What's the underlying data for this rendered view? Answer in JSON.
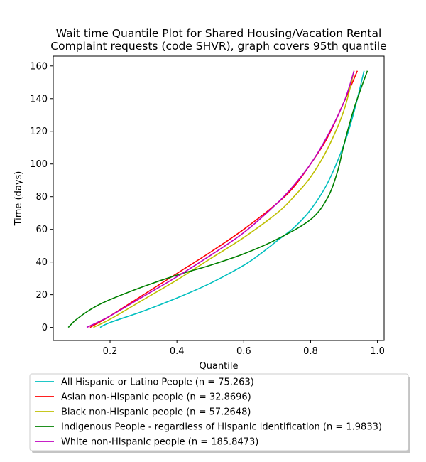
{
  "chart_data": {
    "type": "line",
    "title_lines": [
      "Wait time Quantile Plot for Shared Housing/Vacation Rental",
      "Complaint  requests (code SHVR), graph covers 95th quantile"
    ],
    "xlabel": "Quantile",
    "ylabel": "Time (days)",
    "xlim": [
      0.03,
      1.02
    ],
    "ylim": [
      -8,
      166
    ],
    "xticks": [
      0.2,
      0.4,
      0.6,
      0.8,
      1.0
    ],
    "xtick_labels": [
      "0.2",
      "0.4",
      "0.6",
      "0.8",
      "1.0"
    ],
    "yticks": [
      0,
      20,
      40,
      60,
      80,
      100,
      120,
      140,
      160
    ],
    "ytick_labels": [
      "0",
      "20",
      "40",
      "60",
      "80",
      "100",
      "120",
      "140",
      "160"
    ],
    "grid": false,
    "legend_placement": "below",
    "series": [
      {
        "name": "All Hispanic or Latino People (n = 75.263)",
        "color": "#00bfbf",
        "points": [
          [
            0.17,
            0
          ],
          [
            0.2,
            3
          ],
          [
            0.3,
            10
          ],
          [
            0.4,
            18
          ],
          [
            0.5,
            27
          ],
          [
            0.6,
            38
          ],
          [
            0.65,
            45
          ],
          [
            0.7,
            53
          ],
          [
            0.75,
            61
          ],
          [
            0.8,
            72
          ],
          [
            0.85,
            88
          ],
          [
            0.9,
            112
          ],
          [
            0.93,
            132
          ],
          [
            0.96,
            157
          ]
        ]
      },
      {
        "name": "Asian non-Hispanic people (n = 32.8696)",
        "color": "#ff0000",
        "points": [
          [
            0.14,
            0
          ],
          [
            0.2,
            7
          ],
          [
            0.3,
            20
          ],
          [
            0.4,
            33
          ],
          [
            0.5,
            46
          ],
          [
            0.6,
            60
          ],
          [
            0.7,
            76
          ],
          [
            0.75,
            86
          ],
          [
            0.8,
            100
          ],
          [
            0.85,
            116
          ],
          [
            0.9,
            138
          ],
          [
            0.94,
            157
          ]
        ]
      },
      {
        "name": "Black non-Hispanic people (n = 57.2648)",
        "color": "#bfbf00",
        "points": [
          [
            0.15,
            0
          ],
          [
            0.2,
            5
          ],
          [
            0.3,
            17
          ],
          [
            0.4,
            29
          ],
          [
            0.5,
            42
          ],
          [
            0.6,
            55
          ],
          [
            0.7,
            70
          ],
          [
            0.75,
            80
          ],
          [
            0.8,
            92
          ],
          [
            0.85,
            109
          ],
          [
            0.9,
            133
          ],
          [
            0.93,
            157
          ]
        ]
      },
      {
        "name": "Indigenous People - regardless of Hispanic identification (n = 1.9833)",
        "color": "#008000",
        "points": [
          [
            0.075,
            0
          ],
          [
            0.1,
            5
          ],
          [
            0.15,
            12
          ],
          [
            0.2,
            17
          ],
          [
            0.3,
            25
          ],
          [
            0.4,
            32
          ],
          [
            0.5,
            38
          ],
          [
            0.6,
            45
          ],
          [
            0.7,
            54
          ],
          [
            0.8,
            66
          ],
          [
            0.85,
            79
          ],
          [
            0.88,
            95
          ],
          [
            0.9,
            112
          ],
          [
            0.93,
            134
          ],
          [
            0.97,
            157
          ]
        ]
      },
      {
        "name": "White non-Hispanic people (n = 185.8473)",
        "color": "#bf00bf",
        "points": [
          [
            0.13,
            0
          ],
          [
            0.2,
            7
          ],
          [
            0.3,
            19
          ],
          [
            0.4,
            31
          ],
          [
            0.5,
            44
          ],
          [
            0.6,
            58
          ],
          [
            0.7,
            76
          ],
          [
            0.75,
            87
          ],
          [
            0.8,
            100
          ],
          [
            0.85,
            117
          ],
          [
            0.9,
            138
          ],
          [
            0.93,
            157
          ]
        ]
      }
    ]
  }
}
